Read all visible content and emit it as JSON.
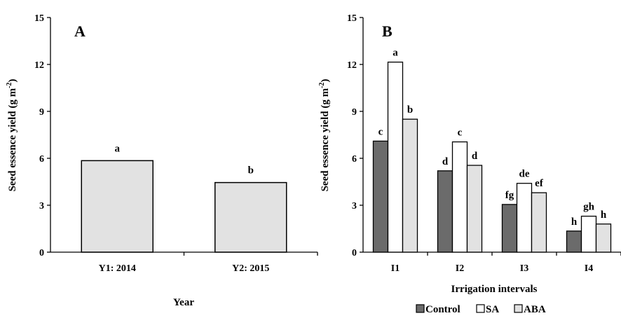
{
  "chart_data": [
    {
      "type": "bar",
      "panel_label": "A",
      "categories": [
        "Y1: 2014",
        "Y2: 2015"
      ],
      "values": [
        5.85,
        4.45
      ],
      "significance": [
        "a",
        "b"
      ],
      "xlabel": "Year",
      "ylabel": "Seed essence yield (g m",
      "ylabel_sup": "-2",
      "ylabel_end": ")",
      "ylim": [
        0,
        15
      ],
      "yticks": [
        "0",
        "3",
        "6",
        "9",
        "12",
        "15"
      ],
      "bar_color": "#e2e2e2",
      "grid": false
    },
    {
      "type": "bar",
      "panel_label": "B",
      "categories": [
        "I1",
        "I2",
        "I3",
        "I4"
      ],
      "series": [
        {
          "name": "Control",
          "color": "#6b6b6b",
          "values": [
            7.1,
            5.2,
            3.05,
            1.35
          ],
          "significance": [
            "c",
            "d",
            "fg",
            "h"
          ]
        },
        {
          "name": "SA",
          "color": "#ffffff",
          "values": [
            12.15,
            7.05,
            4.4,
            2.3
          ],
          "significance": [
            "a",
            "c",
            "de",
            "gh"
          ]
        },
        {
          "name": "ABA",
          "color": "#e2e2e2",
          "values": [
            8.5,
            5.55,
            3.8,
            1.8
          ],
          "significance": [
            "b",
            "d",
            "ef",
            "h"
          ]
        }
      ],
      "xlabel": "Irrigation intervals",
      "ylabel": "Seed essence yield (g m",
      "ylabel_sup": "-2",
      "ylabel_end": ")",
      "ylim": [
        0,
        15
      ],
      "yticks": [
        "0",
        "3",
        "6",
        "9",
        "12",
        "15"
      ],
      "legend_position": "bottom",
      "grid": false
    }
  ]
}
